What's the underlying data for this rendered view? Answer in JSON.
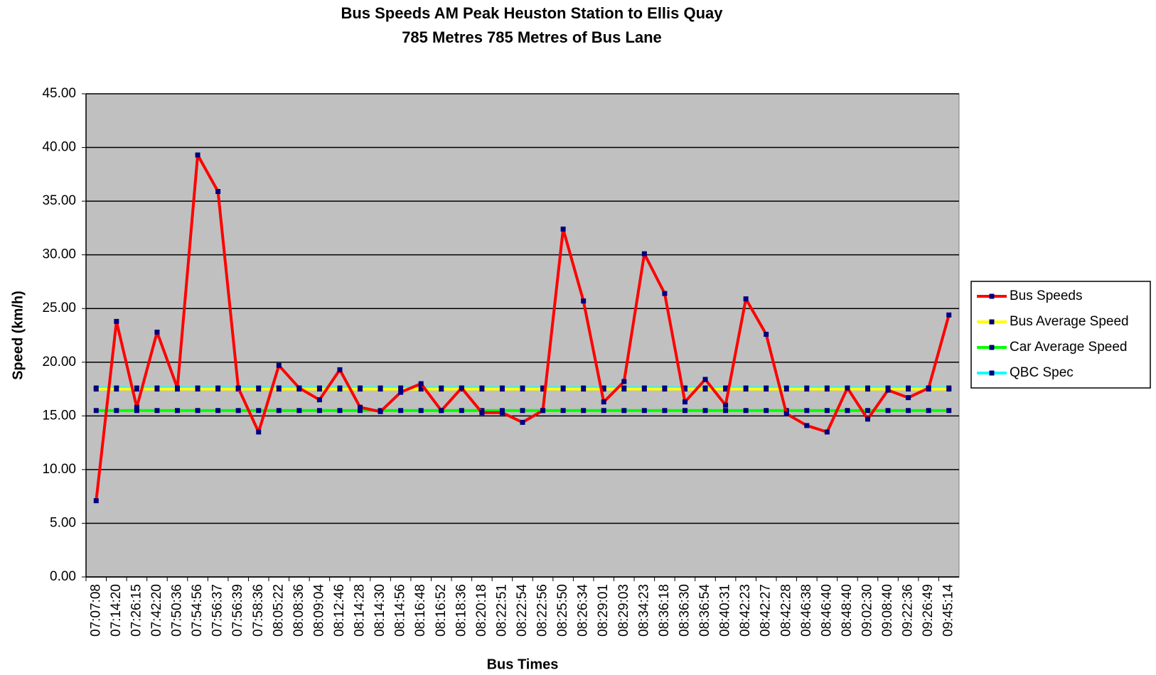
{
  "chart_data": {
    "type": "line",
    "title": "Bus Speeds AM Peak Heuston Station to Ellis Quay",
    "subtitle": "785 Metres 785 Metres of Bus Lane",
    "x_label": "Bus Times",
    "y_label": "Speed (km/h)",
    "categories": [
      "07:07:08",
      "07:14:20",
      "07:26:15",
      "07:42:20",
      "07:50:36",
      "07:54:56",
      "07:56:37",
      "07:56:39",
      "07:58:36",
      "08:05:22",
      "08:08:36",
      "08:09:04",
      "08:12:46",
      "08:14:28",
      "08:14:30",
      "08:14:56",
      "08:16:48",
      "08:16:52",
      "08:18:36",
      "08:20:18",
      "08:22:51",
      "08:22:54",
      "08:22:56",
      "08:25:50",
      "08:26:34",
      "08:29:01",
      "08:29:03",
      "08:34:23",
      "08:36:18",
      "08:36:30",
      "08:36:54",
      "08:40:31",
      "08:42:23",
      "08:42:27",
      "08:42:28",
      "08:46:38",
      "08:46:40",
      "08:48:40",
      "09:02:30",
      "09:08:40",
      "09:22:36",
      "09:26:49",
      "09:45:14"
    ],
    "series": [
      {
        "name": "Bus Speeds",
        "color": "#ff0000",
        "values": [
          7.1,
          23.8,
          15.8,
          22.8,
          17.6,
          39.3,
          35.9,
          17.6,
          13.5,
          19.7,
          17.6,
          16.5,
          19.3,
          15.8,
          15.4,
          17.2,
          18.0,
          15.5,
          17.6,
          15.3,
          15.3,
          14.4,
          15.5,
          32.4,
          25.7,
          16.3,
          18.2,
          30.1,
          26.4,
          16.3,
          18.4,
          16.0,
          25.9,
          22.6,
          15.2,
          14.1,
          13.5,
          17.6,
          14.7,
          17.4,
          16.7,
          17.6,
          24.4
        ]
      },
      {
        "name": "Bus Average Speed",
        "color": "#ffff00",
        "values": [
          17.5,
          17.5,
          17.5,
          17.5,
          17.5,
          17.5,
          17.5,
          17.5,
          17.5,
          17.5,
          17.5,
          17.5,
          17.5,
          17.5,
          17.5,
          17.5,
          17.5,
          17.5,
          17.5,
          17.5,
          17.5,
          17.5,
          17.5,
          17.5,
          17.5,
          17.5,
          17.5,
          17.5,
          17.5,
          17.5,
          17.5,
          17.5,
          17.5,
          17.5,
          17.5,
          17.5,
          17.5,
          17.5,
          17.5,
          17.5,
          17.5,
          17.5,
          17.5
        ]
      },
      {
        "name": "Car Average Speed",
        "color": "#00ff00",
        "values": [
          15.5,
          15.5,
          15.5,
          15.5,
          15.5,
          15.5,
          15.5,
          15.5,
          15.5,
          15.5,
          15.5,
          15.5,
          15.5,
          15.5,
          15.5,
          15.5,
          15.5,
          15.5,
          15.5,
          15.5,
          15.5,
          15.5,
          15.5,
          15.5,
          15.5,
          15.5,
          15.5,
          15.5,
          15.5,
          15.5,
          15.5,
          15.5,
          15.5,
          15.5,
          15.5,
          15.5,
          15.5,
          15.5,
          15.5,
          15.5,
          15.5,
          15.5,
          15.5
        ]
      },
      {
        "name": "QBC Spec",
        "color": "#00ffff",
        "values": [
          17.6,
          17.6,
          17.6,
          17.6,
          17.6,
          17.6,
          17.6,
          17.6,
          17.6,
          17.6,
          17.6,
          17.6,
          17.6,
          17.6,
          17.6,
          17.6,
          17.6,
          17.6,
          17.6,
          17.6,
          17.6,
          17.6,
          17.6,
          17.6,
          17.6,
          17.6,
          17.6,
          17.6,
          17.6,
          17.6,
          17.6,
          17.6,
          17.6,
          17.6,
          17.6,
          17.6,
          17.6,
          17.6,
          17.6,
          17.6,
          17.6,
          17.6,
          17.6
        ]
      }
    ],
    "marker_color": "#000080",
    "ylim": [
      0,
      45
    ],
    "yticks": [
      {
        "value": 0,
        "label": "0.00"
      },
      {
        "value": 5,
        "label": "5.00"
      },
      {
        "value": 10,
        "label": "10.00"
      },
      {
        "value": 15,
        "label": "15.00"
      },
      {
        "value": 20,
        "label": "20.00"
      },
      {
        "value": 25,
        "label": "25.00"
      },
      {
        "value": 30,
        "label": "30.00"
      },
      {
        "value": 35,
        "label": "35.00"
      },
      {
        "value": 40,
        "label": "40.00"
      },
      {
        "value": 45,
        "label": "45.00"
      }
    ],
    "grid": true,
    "plot_background": "#c0c0c0",
    "legend": "right"
  }
}
